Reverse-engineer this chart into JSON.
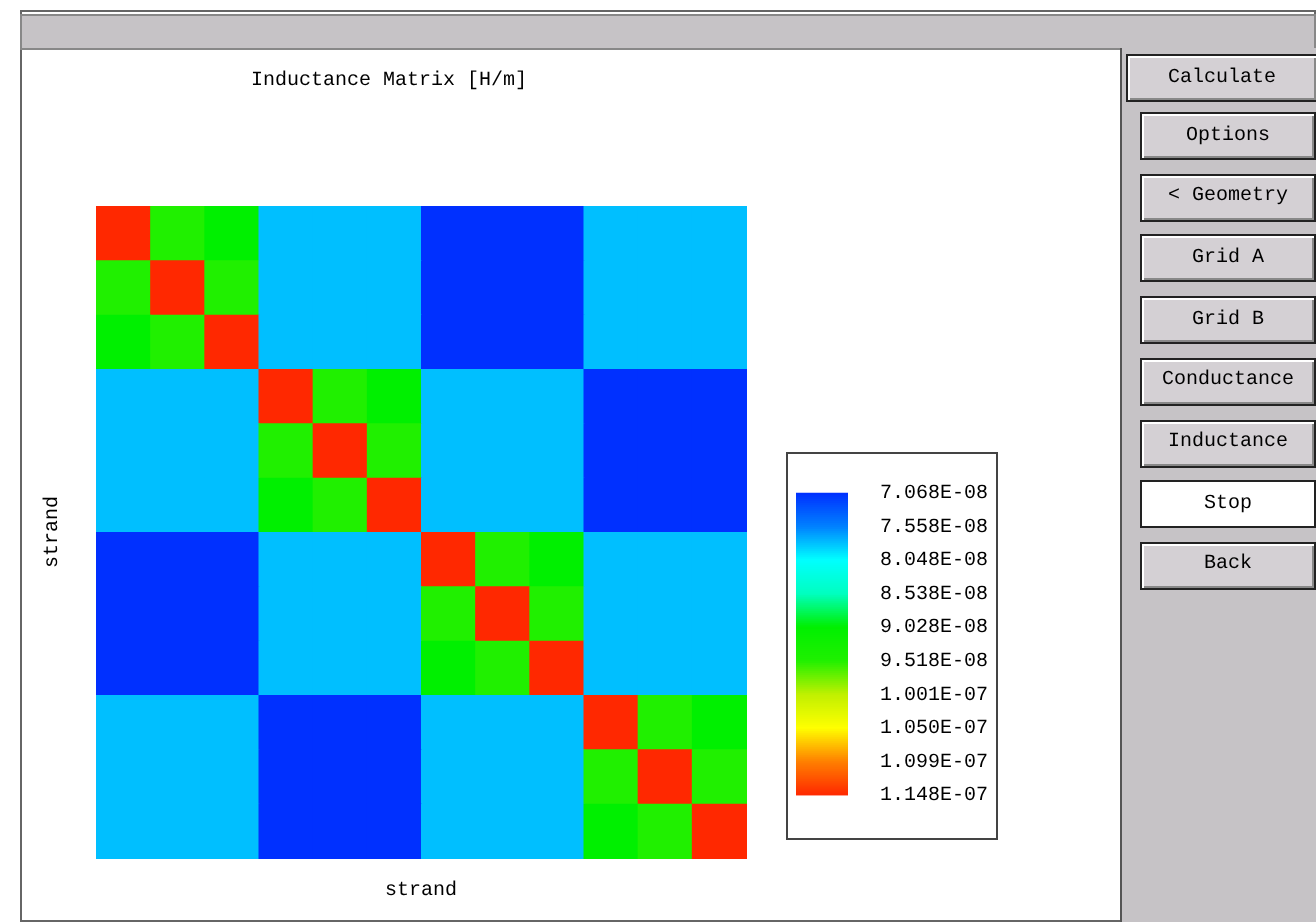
{
  "chart_data": {
    "type": "heatmap",
    "title": "Inductance Matrix [H/m]",
    "xlabel": "strand",
    "ylabel": "strand",
    "categories": [
      null,
      null,
      null,
      null,
      null,
      null,
      null,
      null,
      null,
      null,
      null,
      null
    ],
    "y_categories": [
      null,
      null,
      null,
      null,
      null,
      null,
      null,
      null,
      null,
      null,
      null,
      null
    ],
    "cells": [
      [
        1.148e-07,
        9.518e-08,
        9.028e-08,
        7.8e-08,
        7.8e-08,
        7.8e-08,
        7.068e-08,
        7.068e-08,
        7.068e-08,
        7.8e-08,
        7.8e-08,
        7.8e-08
      ],
      [
        9.518e-08,
        1.148e-07,
        9.518e-08,
        7.8e-08,
        7.8e-08,
        7.8e-08,
        7.068e-08,
        7.068e-08,
        7.068e-08,
        7.8e-08,
        7.8e-08,
        7.8e-08
      ],
      [
        9.028e-08,
        9.518e-08,
        1.148e-07,
        7.8e-08,
        7.8e-08,
        7.8e-08,
        7.068e-08,
        7.068e-08,
        7.068e-08,
        7.8e-08,
        7.8e-08,
        7.8e-08
      ],
      [
        7.8e-08,
        7.8e-08,
        7.8e-08,
        1.148e-07,
        9.518e-08,
        9.028e-08,
        7.8e-08,
        7.8e-08,
        7.8e-08,
        7.068e-08,
        7.068e-08,
        7.068e-08
      ],
      [
        7.8e-08,
        7.8e-08,
        7.8e-08,
        9.518e-08,
        1.148e-07,
        9.518e-08,
        7.8e-08,
        7.8e-08,
        7.8e-08,
        7.068e-08,
        7.068e-08,
        7.068e-08
      ],
      [
        7.8e-08,
        7.8e-08,
        7.8e-08,
        9.028e-08,
        9.518e-08,
        1.148e-07,
        7.8e-08,
        7.8e-08,
        7.8e-08,
        7.068e-08,
        7.068e-08,
        7.068e-08
      ],
      [
        7.068e-08,
        7.068e-08,
        7.068e-08,
        7.8e-08,
        7.8e-08,
        7.8e-08,
        1.148e-07,
        9.518e-08,
        9.028e-08,
        7.8e-08,
        7.8e-08,
        7.8e-08
      ],
      [
        7.068e-08,
        7.068e-08,
        7.068e-08,
        7.8e-08,
        7.8e-08,
        7.8e-08,
        9.518e-08,
        1.148e-07,
        9.518e-08,
        7.8e-08,
        7.8e-08,
        7.8e-08
      ],
      [
        7.068e-08,
        7.068e-08,
        7.068e-08,
        7.8e-08,
        7.8e-08,
        7.8e-08,
        9.028e-08,
        9.518e-08,
        1.148e-07,
        7.8e-08,
        7.8e-08,
        7.8e-08
      ],
      [
        7.8e-08,
        7.8e-08,
        7.8e-08,
        7.068e-08,
        7.068e-08,
        7.068e-08,
        7.8e-08,
        7.8e-08,
        7.8e-08,
        1.148e-07,
        9.518e-08,
        9.028e-08
      ],
      [
        7.8e-08,
        7.8e-08,
        7.8e-08,
        7.068e-08,
        7.068e-08,
        7.068e-08,
        7.8e-08,
        7.8e-08,
        7.8e-08,
        9.518e-08,
        1.148e-07,
        9.518e-08
      ],
      [
        7.8e-08,
        7.8e-08,
        7.8e-08,
        7.068e-08,
        7.068e-08,
        7.068e-08,
        7.8e-08,
        7.8e-08,
        7.8e-08,
        9.028e-08,
        9.518e-08,
        1.148e-07
      ]
    ],
    "clim": [
      7.068e-08,
      1.148e-07
    ],
    "cticks": [
      {
        "value": 7.068e-08,
        "label": "7.068E-08"
      },
      {
        "value": 7.558e-08,
        "label": "7.558E-08"
      },
      {
        "value": 8.048e-08,
        "label": "8.048E-08"
      },
      {
        "value": 8.538e-08,
        "label": "8.538E-08"
      },
      {
        "value": 9.028e-08,
        "label": "9.028E-08"
      },
      {
        "value": 9.518e-08,
        "label": "9.518E-08"
      },
      {
        "value": 1.001e-07,
        "label": "1.001E-07"
      },
      {
        "value": 1.05e-07,
        "label": "1.050E-07"
      },
      {
        "value": 1.099e-07,
        "label": "1.099E-07"
      },
      {
        "value": 1.148e-07,
        "label": "1.148E-07"
      }
    ],
    "colors": [
      "#0030ff",
      "#0080ff",
      "#00ffff",
      "#00ffc0",
      "#00f000",
      "#20f000",
      "#c0f000",
      "#ffff00",
      "#ff8000",
      "#ff2800"
    ],
    "tick_labels": false,
    "annotations": [
      "Calculate",
      "Options",
      "< Geometry",
      "Grid A",
      "Grid B",
      "Conductance",
      "Inductance",
      "Stop",
      "Back"
    ]
  }
}
